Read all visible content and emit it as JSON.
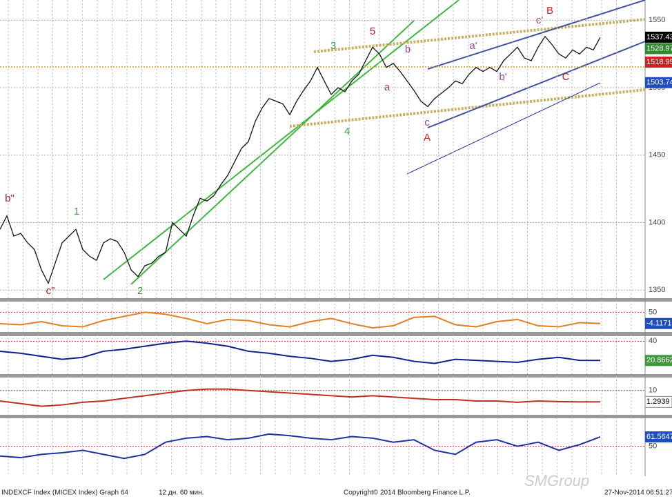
{
  "chart_data": [
    {
      "type": "line",
      "color": "#111111",
      "values": [
        1395,
        1405,
        1390,
        1392,
        1385,
        1380,
        1365,
        1355,
        1370,
        1385,
        1390,
        1395,
        1380,
        1375,
        1372,
        1385,
        1388,
        1386,
        1378,
        1365,
        1360,
        1368,
        1370,
        1375,
        1378,
        1400,
        1395,
        1390,
        1405,
        1418,
        1416,
        1420,
        1428,
        1435,
        1445,
        1455,
        1460,
        1475,
        1485,
        1492,
        1490,
        1488,
        1480,
        1490,
        1498,
        1505,
        1515,
        1505,
        1495,
        1500,
        1497,
        1505,
        1510,
        1520,
        1530,
        1525,
        1515,
        1518,
        1512,
        1505,
        1498,
        1490,
        1486,
        1492,
        1496,
        1500,
        1505,
        1503,
        1510,
        1515,
        1512,
        1515,
        1512,
        1520,
        1525,
        1530,
        1522,
        1520,
        1530,
        1538,
        1532,
        1525,
        1522,
        1528,
        1525,
        1530,
        1528,
        1537.43
      ],
      "ylim": [
        1344,
        1565
      ],
      "yticks": [
        1350,
        1400,
        1450,
        1500,
        1550
      ],
      "grid": true,
      "price_tags": [
        {
          "value": 1537.43,
          "color": "#000000"
        },
        {
          "value": 1528.97,
          "color": "#2e8b2e"
        },
        {
          "value": 1518.95,
          "color": "#d02020"
        },
        {
          "value": 1503.74,
          "color": "#1f4fbf"
        }
      ],
      "annotations": [
        {
          "text": "b\"",
          "color": "#a02020"
        },
        {
          "text": "1",
          "color": "#3aa03a"
        },
        {
          "text": "c\"",
          "color": "#a02020"
        },
        {
          "text": "2",
          "color": "#3aa03a"
        },
        {
          "text": "3",
          "color": "#3aa03a"
        },
        {
          "text": "4",
          "color": "#3aa03a"
        },
        {
          "text": "5",
          "color": "#a02020"
        },
        {
          "text": "a",
          "color": "#a040a0"
        },
        {
          "text": "b",
          "color": "#a040a0"
        },
        {
          "text": "c",
          "color": "#a040a0"
        },
        {
          "text": "A",
          "color": "#d02020"
        },
        {
          "text": "a'",
          "color": "#a040a0"
        },
        {
          "text": "b'",
          "color": "#a040a0"
        },
        {
          "text": "c'",
          "color": "#a040a0"
        },
        {
          "text": "B",
          "color": "#d02020"
        },
        {
          "text": "C",
          "color": "#d02020"
        }
      ]
    },
    {
      "type": "line",
      "color": "#e08020",
      "ylim": [
        -44.6,
        100.7
      ],
      "yticks": [
        50
      ],
      "tag": -4.1171,
      "tag_color": "#1f4fbf",
      "values": [
        -5,
        -10,
        5,
        -15,
        -20,
        10,
        30,
        50,
        40,
        20,
        -5,
        15,
        10,
        -10,
        -20,
        5,
        20,
        -5,
        -25,
        -15,
        25,
        30,
        -10,
        -20,
        5,
        15,
        -15,
        -20,
        0,
        -4.1171
      ]
    },
    {
      "type": "line",
      "color": "#102090",
      "ylim": [
        7.4,
        45
      ],
      "yticks": [
        40
      ],
      "tag": 20.8662,
      "tag_color": "#3c9a3c",
      "values": [
        30,
        28,
        25,
        22,
        24,
        30,
        32,
        35,
        38,
        40,
        38,
        35,
        30,
        28,
        25,
        23,
        20,
        22,
        26,
        24,
        20,
        18,
        22,
        21,
        20,
        19,
        22,
        24,
        21,
        20.8662
      ]
    },
    {
      "type": "line",
      "color": "#c03020",
      "ylim": [
        -8.5,
        19.8
      ],
      "yticks": [
        10
      ],
      "tag": 1.2939,
      "tag_color": "#ffffff",
      "values": [
        2,
        0,
        -2,
        -1,
        1,
        2,
        4,
        6,
        8,
        10,
        11,
        11,
        10,
        9,
        8,
        7,
        6,
        5,
        6,
        5,
        4,
        3,
        3,
        2,
        2,
        1,
        2,
        1.5,
        1.3,
        1.2939
      ]
    },
    {
      "type": "line",
      "color": "#2030a0",
      "ylim": [
        31.8,
        84.5
      ],
      "yticks": [
        50
      ],
      "tag": 61.5647,
      "tag_color": "#1f4fbf",
      "values": [
        38,
        36,
        40,
        42,
        45,
        40,
        35,
        40,
        55,
        60,
        62,
        58,
        60,
        65,
        63,
        60,
        58,
        62,
        60,
        55,
        58,
        45,
        40,
        55,
        58,
        50,
        55,
        45,
        52,
        61.5647
      ]
    }
  ],
  "footer": {
    "security": "INDEXCF Index (MICEX Index) Graph 64",
    "period": "12 дн. 60 мин.",
    "copyright": "Copyright© 2014 Bloomberg Finance L.P.",
    "timestamp": "27-Nov-2014 06:51:27",
    "watermark": "SMGroup"
  }
}
